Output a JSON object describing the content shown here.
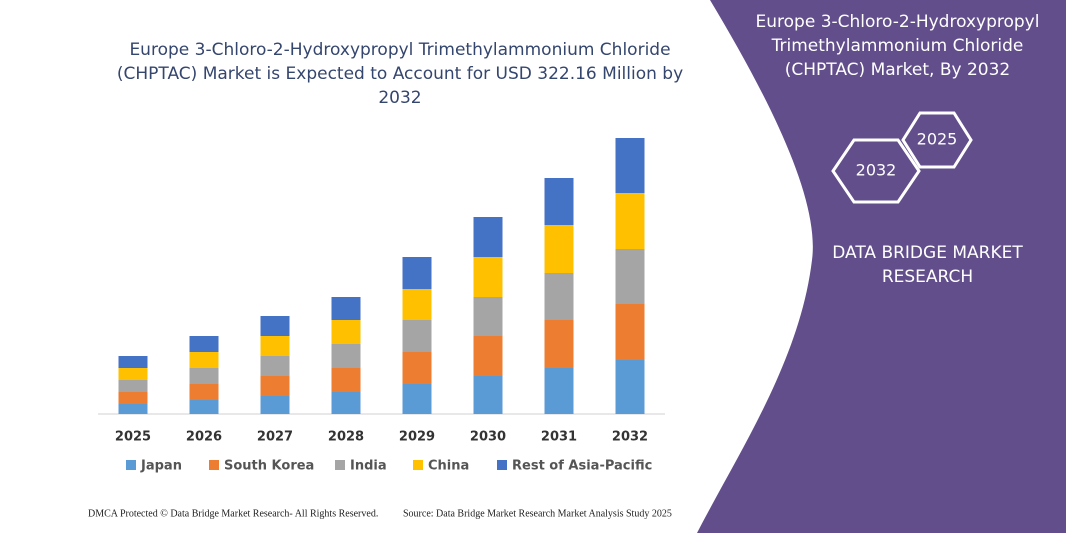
{
  "chart_data": {
    "type": "bar",
    "stacked": true,
    "title": "Europe 3-Chloro-2-Hydroxypropyl Trimethylammonium Chloride (CHPTAC) Market is Expected to Account for USD 322.16 Million by 2032",
    "categories": [
      "2025",
      "2026",
      "2027",
      "2028",
      "2029",
      "2030",
      "2031",
      "2032"
    ],
    "series": [
      {
        "name": "Japan",
        "color": "#5b9bd5",
        "values": [
          10,
          14,
          18,
          22,
          30,
          38,
          46,
          54
        ]
      },
      {
        "name": "South Korea",
        "color": "#ed7d31",
        "values": [
          12,
          16,
          20,
          24,
          32,
          40,
          48,
          56
        ]
      },
      {
        "name": "India",
        "color": "#a5a5a5",
        "values": [
          12,
          16,
          20,
          24,
          32,
          39,
          47,
          55
        ]
      },
      {
        "name": "China",
        "color": "#ffc000",
        "values": [
          12,
          16,
          20,
          24,
          31,
          40,
          48,
          56
        ]
      },
      {
        "name": "Rest of Asia-Pacific",
        "color": "#4472c4",
        "values": [
          12,
          16,
          20,
          23,
          32,
          40,
          47,
          55
        ]
      }
    ]
  },
  "panel": {
    "title": "Europe 3-Chloro-2-Hydroxypropyl Trimethylammonium Chloride (CHPTAC) Market, By 2032",
    "hex_start": "2025",
    "hex_end": "2032",
    "brand": "DATA BRIDGE MARKET RESEARCH"
  },
  "footer": {
    "copyright": "DMCA Protected © Data Bridge Market Research- All Rights Reserved.",
    "source": "Source: Data Bridge Market Research Market Analysis Study 2025"
  }
}
